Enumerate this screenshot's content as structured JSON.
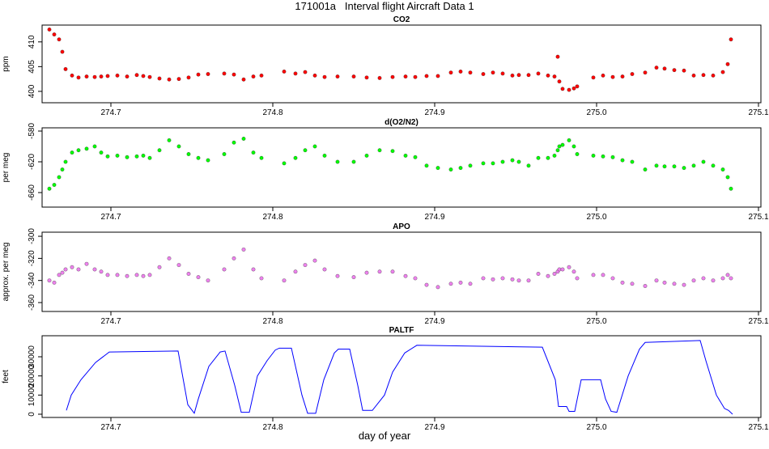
{
  "title": "171001a   Interval flight Aircraft Data 1",
  "xlabel": "day of year",
  "chart_data": [
    {
      "type": "scatter",
      "title": "CO2",
      "ylabel": "ppm",
      "color": "#ff0000",
      "xlim": [
        274.6575,
        275.1015
      ],
      "xticks": [
        274.7,
        274.8,
        274.9,
        {
          "value": 275,
          "label": "275.0"
        },
        275.1
      ],
      "ylim": [
        397.7,
        413.4
      ],
      "yticks": [
        400,
        405,
        410
      ],
      "x": [
        274.662,
        274.665,
        274.668,
        274.67,
        274.672,
        274.676,
        274.68,
        274.685,
        274.69,
        274.694,
        274.698,
        274.704,
        274.71,
        274.716,
        274.72,
        274.724,
        274.73,
        274.736,
        274.742,
        274.748,
        274.754,
        274.76,
        274.77,
        274.776,
        274.782,
        274.788,
        274.793,
        274.807,
        274.814,
        274.82,
        274.826,
        274.832,
        274.84,
        274.85,
        274.858,
        274.866,
        274.874,
        274.882,
        274.888,
        274.895,
        274.902,
        274.91,
        274.916,
        274.922,
        274.93,
        274.936,
        274.942,
        274.948,
        274.952,
        274.958,
        274.964,
        274.97,
        274.974,
        274.976,
        274.977,
        274.979,
        274.983,
        274.986,
        274.988,
        274.998,
        275.004,
        275.01,
        275.016,
        275.022,
        275.03,
        275.037,
        275.042,
        275.048,
        275.054,
        275.06,
        275.066,
        275.072,
        275.078,
        275.081,
        275.083
      ],
      "values": [
        412.5,
        411.5,
        410.5,
        408,
        404.5,
        403.2,
        402.8,
        403,
        402.9,
        403,
        403.1,
        403.2,
        403,
        403.3,
        403.1,
        402.9,
        402.6,
        402.4,
        402.5,
        402.8,
        403.4,
        403.5,
        403.6,
        403.4,
        402.4,
        403,
        403.2,
        404,
        403.6,
        403.9,
        403.2,
        402.9,
        403,
        403,
        402.8,
        402.7,
        402.9,
        403,
        402.9,
        403.1,
        403.1,
        403.8,
        404,
        403.8,
        403.5,
        403.8,
        403.6,
        403.2,
        403.3,
        403.3,
        403.6,
        403.2,
        403,
        407,
        402,
        400.5,
        400.3,
        400.6,
        401,
        402.8,
        403.2,
        402.9,
        403,
        403.5,
        403.8,
        404.8,
        404.6,
        404.3,
        404.2,
        403.2,
        403.3,
        403.2,
        403.9,
        405.5,
        410.5
      ]
    },
    {
      "type": "scatter",
      "title": "d(O2/N2)",
      "ylabel": "per meg",
      "color": "#00ff00",
      "xlim": [
        274.6575,
        275.1015
      ],
      "xticks": [
        274.7,
        274.8,
        274.9,
        {
          "value": 275,
          "label": "275.0"
        },
        275.1
      ],
      "ylim": [
        -678.9,
        -575.8
      ],
      "yticks": [
        -660,
        -620,
        -580
      ],
      "x": [
        274.662,
        274.665,
        274.668,
        274.67,
        274.672,
        274.676,
        274.68,
        274.685,
        274.69,
        274.694,
        274.698,
        274.704,
        274.71,
        274.716,
        274.72,
        274.724,
        274.73,
        274.736,
        274.742,
        274.748,
        274.754,
        274.76,
        274.77,
        274.776,
        274.782,
        274.788,
        274.793,
        274.807,
        274.814,
        274.82,
        274.826,
        274.832,
        274.84,
        274.85,
        274.858,
        274.866,
        274.874,
        274.882,
        274.888,
        274.895,
        274.902,
        274.91,
        274.916,
        274.922,
        274.93,
        274.936,
        274.942,
        274.948,
        274.952,
        274.958,
        274.964,
        274.97,
        274.974,
        274.976,
        274.977,
        274.979,
        274.983,
        274.986,
        274.988,
        274.998,
        275.004,
        275.01,
        275.016,
        275.022,
        275.03,
        275.037,
        275.042,
        275.048,
        275.054,
        275.06,
        275.066,
        275.072,
        275.078,
        275.081,
        275.083
      ],
      "values": [
        -655,
        -650,
        -640,
        -630,
        -620,
        -608,
        -605,
        -603,
        -600,
        -608,
        -613,
        -612,
        -614,
        -613,
        -612,
        -615,
        -605,
        -592,
        -600,
        -610,
        -615,
        -618,
        -610,
        -595,
        -590,
        -608,
        -615,
        -622,
        -615,
        -605,
        -600,
        -612,
        -620,
        -620,
        -612,
        -605,
        -606,
        -612,
        -614,
        -625,
        -628,
        -630,
        -628,
        -625,
        -622,
        -622,
        -620,
        -618,
        -620,
        -625,
        -615,
        -615,
        -612,
        -605,
        -600,
        -598,
        -592,
        -600,
        -610,
        -612,
        -613,
        -614,
        -618,
        -620,
        -630,
        -625,
        -626,
        -626,
        -628,
        -625,
        -620,
        -625,
        -630,
        -640,
        -655
      ]
    },
    {
      "type": "scatter",
      "title": "APO",
      "ylabel": "approx. per meg",
      "color": "#ee82ee",
      "xlim": [
        274.6575,
        275.1015
      ],
      "xticks": [
        274.7,
        274.8,
        274.9,
        {
          "value": 275,
          "label": "275.0"
        },
        275.1
      ],
      "ylim": [
        -368.05,
        -296.3
      ],
      "yticks": [
        -360,
        -340,
        -320,
        -300
      ],
      "x": [
        274.662,
        274.665,
        274.668,
        274.67,
        274.672,
        274.676,
        274.68,
        274.685,
        274.69,
        274.694,
        274.698,
        274.704,
        274.71,
        274.716,
        274.72,
        274.724,
        274.73,
        274.736,
        274.742,
        274.748,
        274.754,
        274.76,
        274.77,
        274.776,
        274.782,
        274.788,
        274.793,
        274.807,
        274.814,
        274.82,
        274.826,
        274.832,
        274.84,
        274.85,
        274.858,
        274.866,
        274.874,
        274.882,
        274.888,
        274.895,
        274.902,
        274.91,
        274.916,
        274.922,
        274.93,
        274.936,
        274.942,
        274.948,
        274.952,
        274.958,
        274.964,
        274.97,
        274.974,
        274.976,
        274.977,
        274.979,
        274.983,
        274.986,
        274.988,
        274.998,
        275.004,
        275.01,
        275.016,
        275.022,
        275.03,
        275.037,
        275.042,
        275.048,
        275.054,
        275.06,
        275.066,
        275.072,
        275.078,
        275.081,
        275.083
      ],
      "values": [
        -340,
        -342,
        -335,
        -333,
        -330,
        -328,
        -330,
        -325,
        -330,
        -332,
        -335,
        -335,
        -336,
        -335,
        -336,
        -335,
        -328,
        -320,
        -326,
        -334,
        -337,
        -340,
        -330,
        -320,
        -312,
        -330,
        -338,
        -340,
        -332,
        -326,
        -322,
        -330,
        -336,
        -337,
        -333,
        -332,
        -332,
        -336,
        -338,
        -344,
        -346,
        -343,
        -342,
        -343,
        -338,
        -339,
        -338,
        -339,
        -340,
        -340,
        -334,
        -336,
        -334,
        -332,
        -330,
        -330,
        -328,
        -332,
        -338,
        -335,
        -335,
        -338,
        -342,
        -343,
        -345,
        -340,
        -342,
        -343,
        -344,
        -340,
        -338,
        -340,
        -338,
        -335,
        -338
      ]
    },
    {
      "type": "line",
      "title": "PALTF",
      "ylabel": "feet",
      "color": "#0000ff",
      "xlim": [
        274.6575,
        275.1015
      ],
      "xticks": [
        274.7,
        274.8,
        274.9,
        {
          "value": 275,
          "label": "275.0"
        },
        275.1
      ],
      "ylim": [
        -1690,
        40986
      ],
      "yticks": [
        0,
        10000,
        20000,
        30000
      ],
      "x": [
        274.6725,
        274.6755,
        274.6815,
        274.6905,
        274.699,
        274.7415,
        274.7475,
        274.7515,
        274.754,
        274.7605,
        274.7675,
        274.7705,
        274.7765,
        274.7805,
        274.7855,
        274.7905,
        274.7965,
        274.8015,
        274.804,
        274.8115,
        274.818,
        274.8215,
        274.8265,
        274.8315,
        274.838,
        274.8405,
        274.8475,
        274.8525,
        274.8555,
        274.8615,
        274.869,
        274.874,
        274.8815,
        274.889,
        274.9665,
        274.9745,
        274.9765,
        274.9815,
        274.983,
        274.9865,
        274.9905,
        275.0025,
        275.0055,
        275.009,
        275.0125,
        275.0195,
        275.0265,
        275.03,
        275.064,
        275.0675,
        275.074,
        275.079,
        275.0815,
        275.084
      ],
      "values": [
        2000,
        10000,
        18000,
        27000,
        32500,
        33000,
        5000,
        500,
        8000,
        25000,
        32500,
        33000,
        15000,
        1000,
        1000,
        20000,
        28000,
        33500,
        34500,
        34500,
        10000,
        500,
        500,
        18000,
        32000,
        34000,
        34000,
        15000,
        2000,
        2000,
        10000,
        22000,
        32000,
        36000,
        35000,
        18000,
        4000,
        4000,
        1500,
        1500,
        18000,
        18000,
        8000,
        1500,
        1000,
        20000,
        34000,
        37500,
        38500,
        28000,
        10000,
        3000,
        2000,
        0
      ]
    }
  ]
}
